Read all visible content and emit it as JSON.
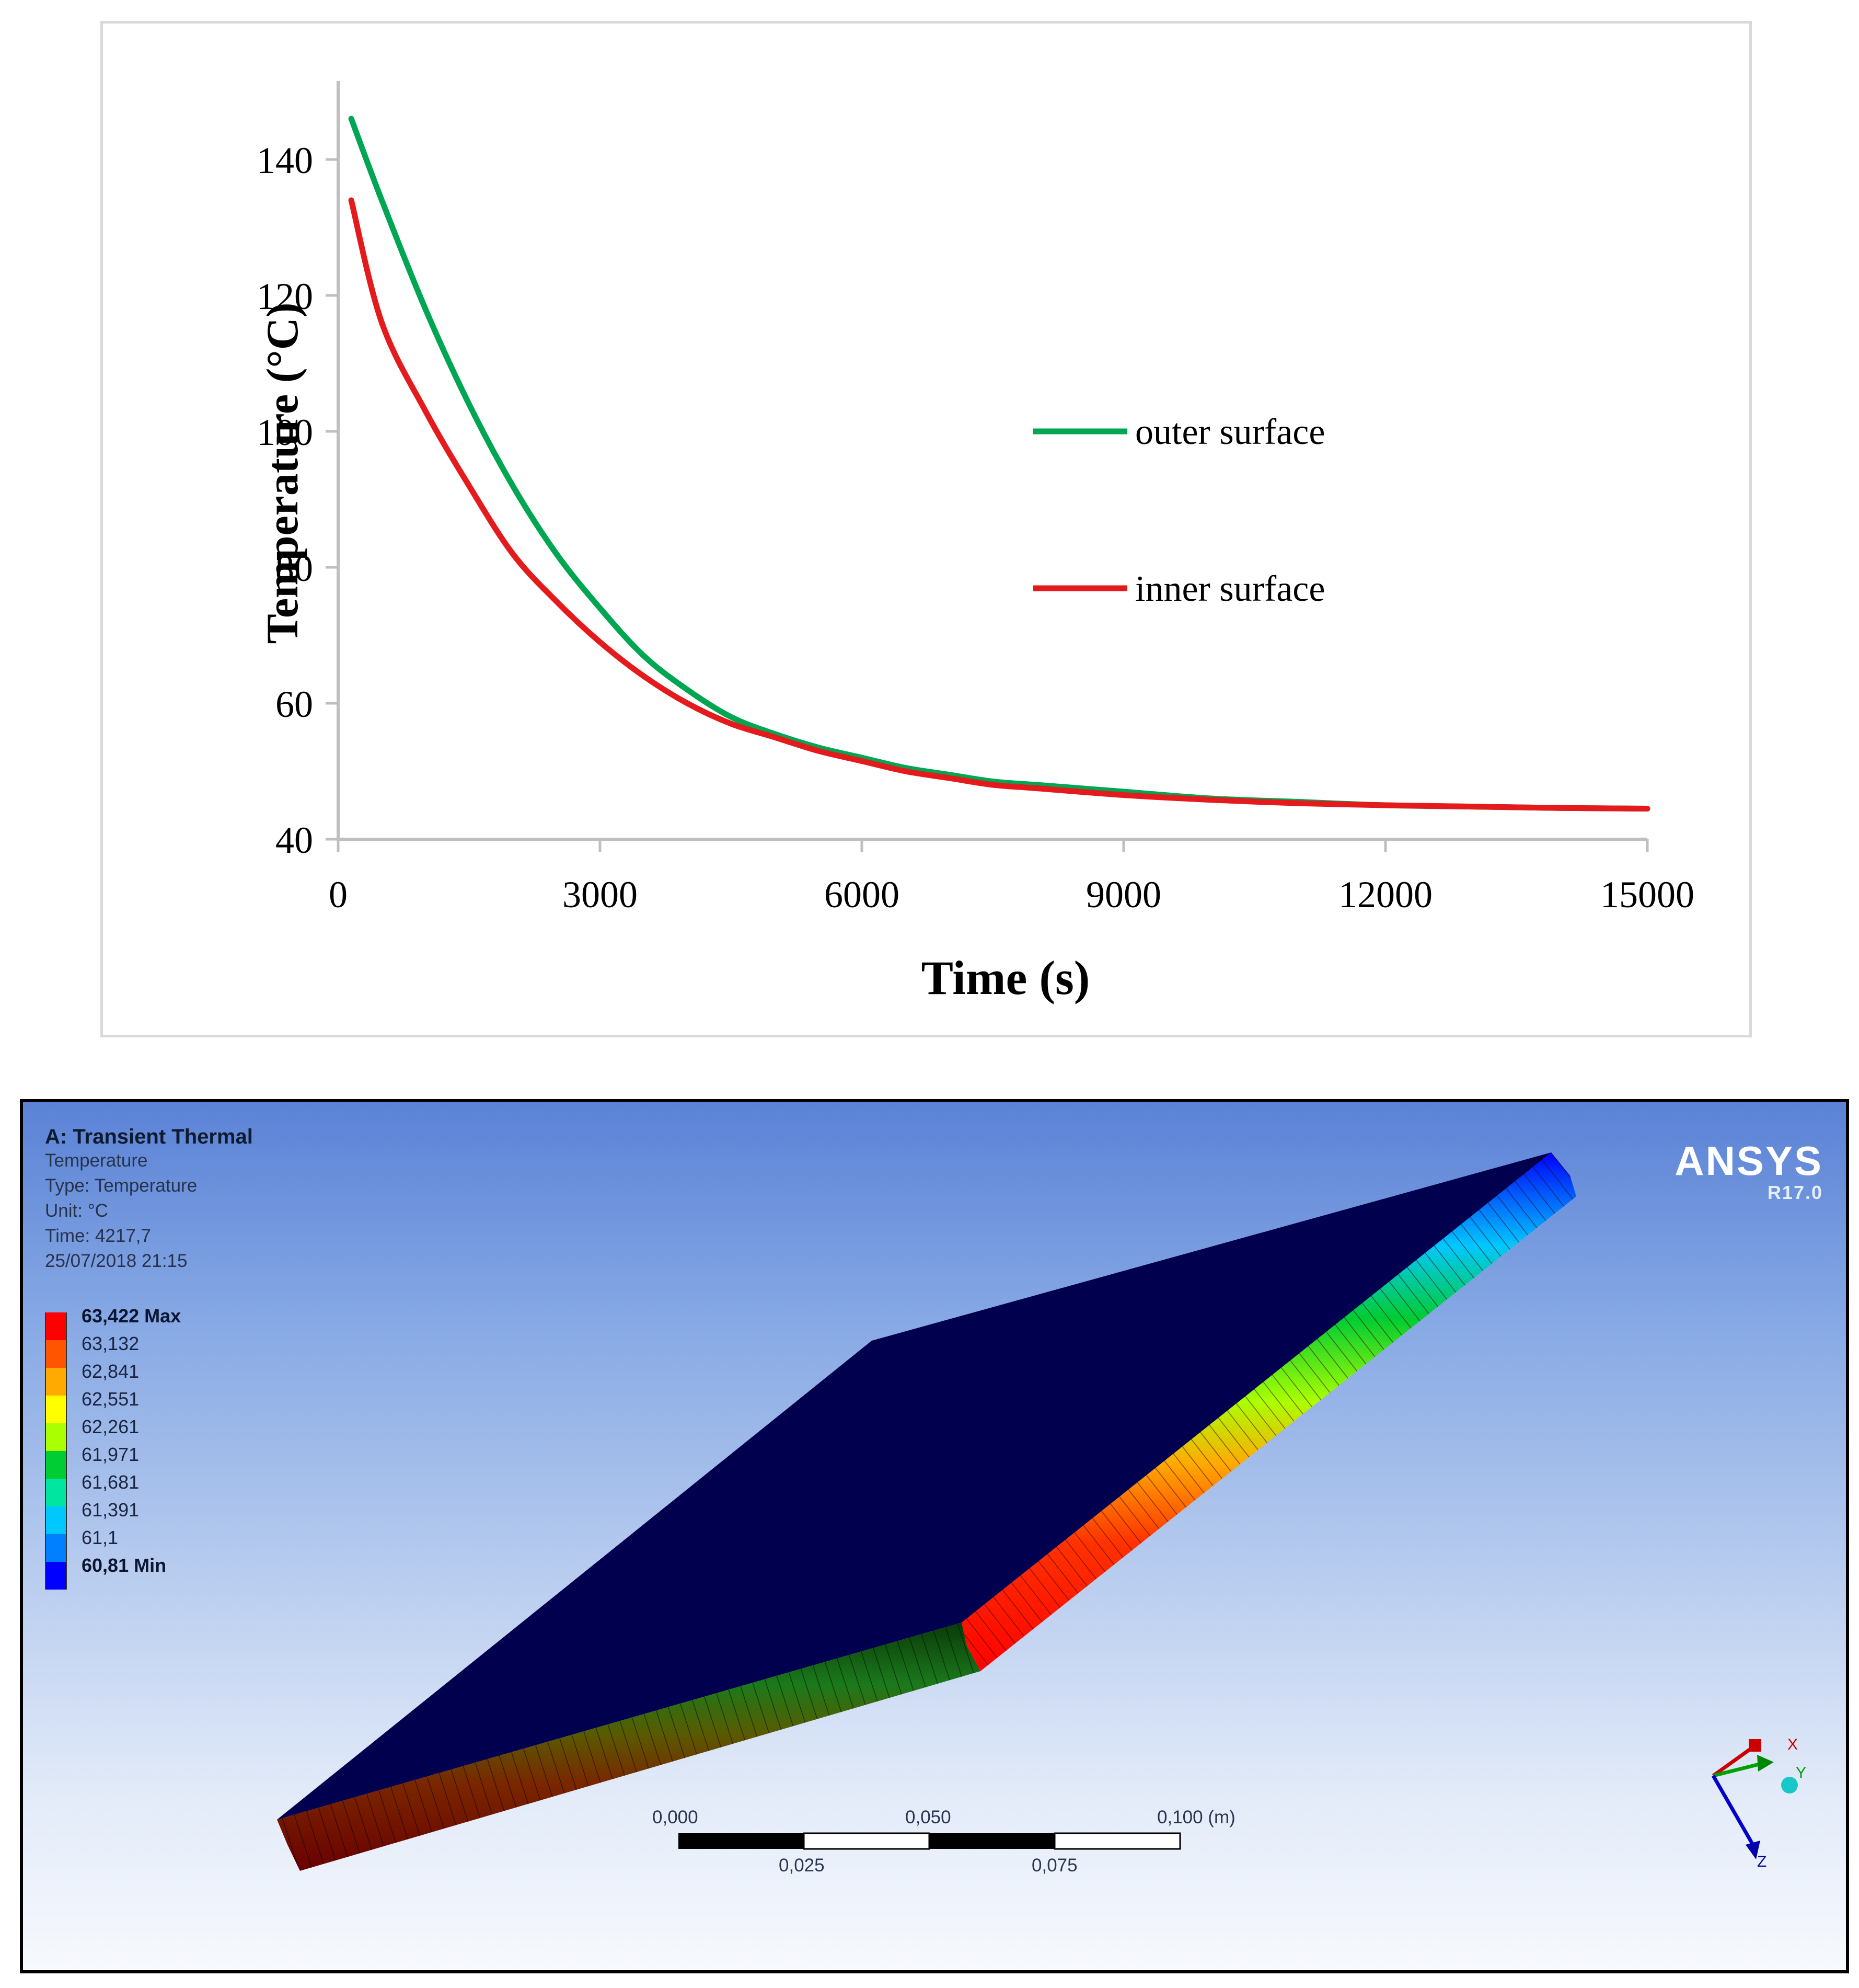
{
  "chart_data": {
    "type": "line",
    "title": "",
    "xlabel": "Time (s)",
    "ylabel": "Temperature  (°C)",
    "xlim": [
      0,
      15000
    ],
    "ylim": [
      40,
      150
    ],
    "xticks": [
      0,
      3000,
      6000,
      9000,
      12000,
      15000
    ],
    "yticks": [
      40,
      60,
      80,
      100,
      120,
      140
    ],
    "grid": false,
    "legend_position": "center-right",
    "series": [
      {
        "name": "outer surface",
        "color": "#00a651",
        "x": [
          150,
          500,
          1000,
          1500,
          2000,
          2500,
          3000,
          3500,
          4000,
          4500,
          5000,
          5500,
          6000,
          6500,
          7000,
          7500,
          8000,
          9000,
          10000,
          11000,
          12000,
          13000,
          14000,
          15000
        ],
        "y": [
          146,
          134,
          118,
          104,
          92,
          82,
          74,
          67,
          62,
          58,
          55.5,
          53.5,
          52,
          50.5,
          49.5,
          48.5,
          48,
          47,
          46,
          45.5,
          45,
          44.8,
          44.6,
          44.5
        ]
      },
      {
        "name": "inner surface",
        "color": "#e41a1c",
        "x": [
          150,
          500,
          1000,
          1500,
          2000,
          2500,
          3000,
          3500,
          4000,
          4500,
          5000,
          5500,
          6000,
          6500,
          7000,
          7500,
          8000,
          9000,
          10000,
          11000,
          12000,
          13000,
          14000,
          15000
        ],
        "y": [
          134,
          116,
          103,
          92,
          82,
          75,
          69,
          64,
          60,
          57,
          55,
          53,
          51.5,
          50,
          49,
          48,
          47.5,
          46.5,
          45.8,
          45.3,
          45,
          44.8,
          44.6,
          44.5
        ]
      }
    ]
  },
  "simulation": {
    "title": "A: Transient Thermal",
    "result_name": "Temperature",
    "type_line": "Type: Temperature",
    "unit_line": "Unit: °C",
    "time_line": "Time: 4217,7",
    "date_line": "25/07/2018 21:15",
    "legend": [
      {
        "label": "63,422 Max",
        "color": "#ff0000"
      },
      {
        "label": "63,132",
        "color": "#ff5500"
      },
      {
        "label": "62,841",
        "color": "#ffaa00"
      },
      {
        "label": "62,551",
        "color": "#ffff00"
      },
      {
        "label": "62,261",
        "color": "#aaff00"
      },
      {
        "label": "61,971",
        "color": "#00cc33"
      },
      {
        "label": "61,681",
        "color": "#00e6a0"
      },
      {
        "label": "61,391",
        "color": "#00c8ff"
      },
      {
        "label": "61,1",
        "color": "#0080ff"
      },
      {
        "label": "60,81 Min",
        "color": "#0000ff"
      }
    ],
    "brand": "ANSYS",
    "version": "R17.0",
    "scale_bar": {
      "top_labels": [
        "0,000",
        "0,050",
        "0,100 (m)"
      ],
      "bottom_labels": [
        "0,025",
        "0,075"
      ]
    },
    "triad": {
      "x_label": "X",
      "y_label": "Y",
      "z_label": "Z"
    }
  }
}
